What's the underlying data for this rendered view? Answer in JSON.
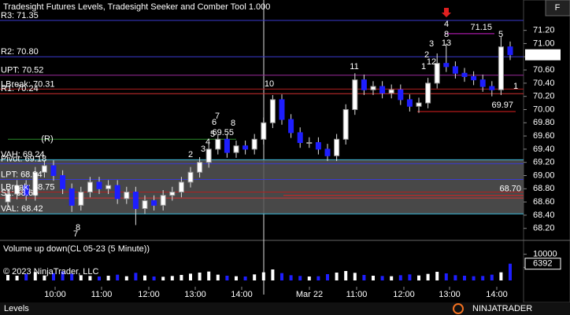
{
  "chart_data": {
    "type": "candlestick",
    "title": "Tradesight Futures Levels, Tradesight Seeker and Comber Tool 1.000",
    "ylim": [
      68.03,
      71.66
    ],
    "yticks": [
      {
        "value": 71.2,
        "label": "71.20"
      },
      {
        "value": 71.0,
        "label": "71.00"
      },
      {
        "value": 70.8,
        "label": "70.80"
      },
      {
        "value": 70.6,
        "label": "70.60"
      },
      {
        "value": 70.4,
        "label": "70.40"
      },
      {
        "value": 70.2,
        "label": "70.20"
      },
      {
        "value": 70.0,
        "label": "70.00"
      },
      {
        "value": 69.8,
        "label": "69.80"
      },
      {
        "value": 69.6,
        "label": "69.60"
      },
      {
        "value": 69.4,
        "label": "69.40"
      },
      {
        "value": 69.2,
        "label": "69.20"
      },
      {
        "value": 69.0,
        "label": "69.00"
      },
      {
        "value": 68.8,
        "label": "68.80"
      },
      {
        "value": 68.6,
        "label": "68.60"
      },
      {
        "value": 68.4,
        "label": "68.40"
      },
      {
        "value": 68.2,
        "label": "68.20"
      }
    ],
    "up_color": "#ffffff",
    "down_color": "#1e1eff",
    "open": [
      68.6,
      68.72,
      68.85,
      68.7,
      69.05,
      69.15,
      69.0,
      68.8,
      68.55,
      68.75,
      68.9,
      68.8,
      68.85,
      68.65,
      68.75,
      68.5,
      68.62,
      68.55,
      68.7,
      68.75,
      68.9,
      69.05,
      69.2,
      69.4,
      69.55,
      69.35,
      69.45,
      69.4,
      69.55,
      69.8,
      70.15,
      69.85,
      69.65,
      69.5,
      69.5,
      69.4,
      69.3,
      69.55,
      70.0,
      70.45,
      70.3,
      70.35,
      70.25,
      70.3,
      70.15,
      70.05,
      70.1,
      70.4,
      70.7,
      70.65,
      70.55,
      70.5,
      70.45,
      70.35,
      70.3,
      70.95
    ],
    "high": [
      68.8,
      68.93,
      68.93,
      69.13,
      69.23,
      69.23,
      69.08,
      68.88,
      68.83,
      68.98,
      68.98,
      68.93,
      68.93,
      68.83,
      68.83,
      68.7,
      68.7,
      68.78,
      68.83,
      68.98,
      69.13,
      69.28,
      69.48,
      69.63,
      69.63,
      69.53,
      69.53,
      69.63,
      69.88,
      70.22,
      70.23,
      69.93,
      69.73,
      69.58,
      69.58,
      69.48,
      69.63,
      70.08,
      70.55,
      70.53,
      70.43,
      70.43,
      70.38,
      70.38,
      70.23,
      70.18,
      70.48,
      70.85,
      71.0,
      70.73,
      70.63,
      70.58,
      70.53,
      70.43,
      71.1,
      71.03
    ],
    "low": [
      68.52,
      68.64,
      68.62,
      68.62,
      68.97,
      68.92,
      68.72,
      68.45,
      68.47,
      68.67,
      68.72,
      68.72,
      68.57,
      68.57,
      68.25,
      68.42,
      68.47,
      68.47,
      68.62,
      68.67,
      68.82,
      68.97,
      69.12,
      69.32,
      69.27,
      69.27,
      69.32,
      69.32,
      69.47,
      69.72,
      69.77,
      69.57,
      69.42,
      69.42,
      69.32,
      69.22,
      69.22,
      69.47,
      69.92,
      70.22,
      70.22,
      70.17,
      70.17,
      70.07,
      69.97,
      69.95,
      70.02,
      70.32,
      70.57,
      70.47,
      70.42,
      70.37,
      70.27,
      70.2,
      70.22,
      70.75
    ],
    "close": [
      68.72,
      68.85,
      68.7,
      69.05,
      69.15,
      69.0,
      68.8,
      68.55,
      68.75,
      68.9,
      68.8,
      68.85,
      68.65,
      68.75,
      68.5,
      68.62,
      68.55,
      68.7,
      68.75,
      68.9,
      69.05,
      69.2,
      69.4,
      69.55,
      69.35,
      69.45,
      69.4,
      69.55,
      69.8,
      70.15,
      69.85,
      69.65,
      69.5,
      69.5,
      69.4,
      69.3,
      69.55,
      70.0,
      70.45,
      70.3,
      70.35,
      70.25,
      70.3,
      70.15,
      70.05,
      70.1,
      70.4,
      70.7,
      70.65,
      70.55,
      70.5,
      70.45,
      70.35,
      70.3,
      70.95,
      70.83
    ],
    "levels": [
      {
        "label": "R3: 71.35",
        "value": 71.35,
        "color": "#3a3ad0"
      },
      {
        "label": "R2: 70.80",
        "value": 70.8,
        "color": "#3a3ad0"
      },
      {
        "label": "UPT: 70.52",
        "value": 70.52,
        "color": "#9a2a9a"
      },
      {
        "label": "LBreak: 70.31",
        "value": 70.31,
        "color": "#b02020"
      },
      {
        "label": "R1: 70.24",
        "value": 70.24,
        "color": "#d03030"
      },
      {
        "label": "VAH: 69.24",
        "value": 69.24,
        "color": "#40c0e0"
      },
      {
        "label": "Pivot: 69.18",
        "value": 69.18,
        "color": "#3a3ad0"
      },
      {
        "label": "LPT: 68.94",
        "value": 68.94,
        "color": "#3a3ad0"
      },
      {
        "label": "LBreak: 68.75",
        "value": 68.75,
        "color": "#b02020"
      },
      {
        "label": "S1: 68.66",
        "value": 68.66,
        "color": "#d03030"
      },
      {
        "label": "VAL: 68.42",
        "value": 68.42,
        "color": "#40c0e0"
      }
    ],
    "segments": [
      {
        "value": 69.55,
        "color": "#2a8a2a"
      },
      {
        "value": 71.15,
        "color": "#d020d0"
      },
      {
        "value": 69.97,
        "color": "#e02020"
      },
      {
        "value": 68.7,
        "label": "68.70",
        "color": "#e02020"
      }
    ],
    "annotations": [
      {
        "text": "(R)",
        "color": "#d020d0"
      },
      {
        "text": "8",
        "color": "#2a9a2a"
      },
      {
        "text": "7",
        "color": "#2a9a2a"
      },
      {
        "text": "2",
        "color": "#d020d0"
      },
      {
        "text": "3",
        "color": "#d020d0"
      },
      {
        "text": "4",
        "color": "#d020d0"
      },
      {
        "text": "5",
        "color": "#d020d0"
      },
      {
        "text": "6",
        "color": "#d020d0"
      },
      {
        "text": "7",
        "color": "#d020d0"
      },
      {
        "text": "8",
        "color": "#d020d0"
      },
      {
        "text": "10",
        "color": "#d020d0"
      },
      {
        "text": "11",
        "color": "#d020d0"
      },
      {
        "text": "1",
        "color": "#d020d0"
      },
      {
        "text": "2",
        "color": "#d020d0"
      },
      {
        "text": "3",
        "color": "#d020d0"
      },
      {
        "text": "12",
        "color": "#d020d0"
      },
      {
        "text": "13",
        "color": "#d020d0"
      },
      {
        "text": "4",
        "color": "#d020d0"
      },
      {
        "text": "8",
        "color": "#2a9a2a"
      },
      {
        "text": "5",
        "color": "#d020d0"
      },
      {
        "text": "1",
        "color": "#2a9a2a"
      }
    ],
    "volume_title": "Volume up down(CL 05-23 (5 Minute))",
    "volume": [
      2100,
      1800,
      2500,
      3200,
      1900,
      2800,
      3500,
      2600,
      2000,
      1700,
      1500,
      1800,
      2200,
      1600,
      2900,
      1900,
      1500,
      1400,
      1700,
      2100,
      2600,
      3000,
      3400,
      2200,
      1800,
      1600,
      1500,
      2300,
      3100,
      4200,
      2800,
      2000,
      1700,
      1500,
      1600,
      2400,
      3000,
      3600,
      2900,
      2100,
      1800,
      1700,
      1600,
      2000,
      2300,
      1900,
      2500,
      3300,
      2700,
      2000,
      1800,
      1600,
      1700,
      2200,
      3100,
      6392
    ],
    "vlim": [
      0,
      15300
    ],
    "vticks": [
      10000,
      5000
    ],
    "time_labels": [
      "10:00",
      "11:00",
      "12:00",
      "13:00",
      "14:00",
      "Mar 22",
      "11:00",
      "12:00",
      "13:00",
      "14:00"
    ],
    "copyright": "© 2023 NinjaTrader, LLC",
    "tab": "Levels",
    "logo": "NINJATRADER",
    "button": "F"
  }
}
